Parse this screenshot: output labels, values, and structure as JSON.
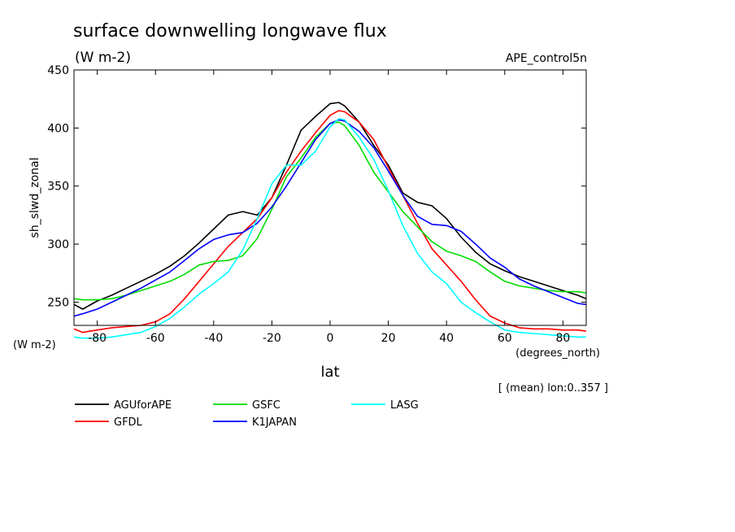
{
  "chart_data": {
    "type": "line",
    "title": "surface downwelling longwave flux",
    "units": "(W m-2)",
    "run": "APE_control5n",
    "xlabel": "lat",
    "x_units": "(degrees_north)",
    "ylabel": "sh_slwd_zonal",
    "y_units": "(W m-2)",
    "note": "[ (mean) lon:0..357 ]",
    "xlim": [
      -88,
      88
    ],
    "ylim": [
      230,
      450
    ],
    "xticks": [
      -80,
      -60,
      -40,
      -20,
      0,
      20,
      40,
      60,
      80
    ],
    "xtick_labels": [
      "-80",
      "-60",
      "-40",
      "-20",
      "0",
      "20",
      "40",
      "60",
      "80"
    ],
    "yticks": [
      250,
      300,
      350,
      400,
      450
    ],
    "ytick_labels": [
      "250",
      "300",
      "350",
      "400",
      "450"
    ],
    "grid": false,
    "legend_position": "below",
    "x": [
      -88,
      -85,
      -80,
      -75,
      -70,
      -65,
      -60,
      -55,
      -50,
      -45,
      -40,
      -35,
      -30,
      -25,
      -20,
      -15,
      -10,
      -5,
      0,
      3,
      5,
      10,
      15,
      20,
      25,
      30,
      35,
      40,
      45,
      50,
      55,
      60,
      65,
      70,
      75,
      80,
      85,
      88
    ],
    "series": [
      {
        "name": "AGUforAPE",
        "color": "#000000",
        "values": [
          248,
          244,
          251,
          256,
          262,
          268,
          274,
          281,
          290,
          301,
          313,
          325,
          328,
          325,
          340,
          368,
          398,
          410,
          421,
          422,
          419,
          405,
          385,
          368,
          344,
          336,
          333,
          322,
          306,
          293,
          283,
          277,
          272,
          268,
          264,
          260,
          256,
          253
        ]
      },
      {
        "name": "GFDL",
        "color": "#ff0000",
        "values": [
          227,
          224,
          226,
          228,
          229,
          230,
          233,
          240,
          253,
          268,
          283,
          298,
          310,
          322,
          340,
          362,
          380,
          396,
          411,
          415,
          414,
          405,
          390,
          366,
          342,
          318,
          296,
          282,
          268,
          252,
          238,
          232,
          228,
          227,
          227,
          226,
          226,
          225
        ]
      },
      {
        "name": "GSFC",
        "color": "#00dd00",
        "values": [
          253,
          252,
          252,
          253,
          256,
          260,
          264,
          268,
          274,
          282,
          285,
          286,
          290,
          305,
          330,
          358,
          374,
          392,
          404,
          405,
          402,
          385,
          362,
          345,
          328,
          315,
          302,
          294,
          290,
          285,
          276,
          268,
          264,
          262,
          260,
          259,
          259,
          258
        ]
      },
      {
        "name": "K1JAPAN",
        "color": "#0000ff",
        "values": [
          238,
          240,
          244,
          250,
          256,
          262,
          269,
          276,
          286,
          296,
          304,
          308,
          310,
          318,
          332,
          350,
          370,
          390,
          404,
          407,
          406,
          397,
          383,
          363,
          342,
          324,
          317,
          316,
          311,
          300,
          288,
          280,
          270,
          264,
          259,
          254,
          249,
          248
        ]
      },
      {
        "name": "LASG",
        "color": "#00ffff",
        "values": [
          220,
          219,
          219,
          220,
          222,
          224,
          229,
          236,
          246,
          257,
          266,
          276,
          295,
          322,
          352,
          368,
          368,
          380,
          401,
          408,
          407,
          392,
          373,
          346,
          316,
          292,
          276,
          266,
          250,
          241,
          233,
          226,
          224,
          223,
          222,
          221,
          220,
          220
        ]
      }
    ]
  }
}
